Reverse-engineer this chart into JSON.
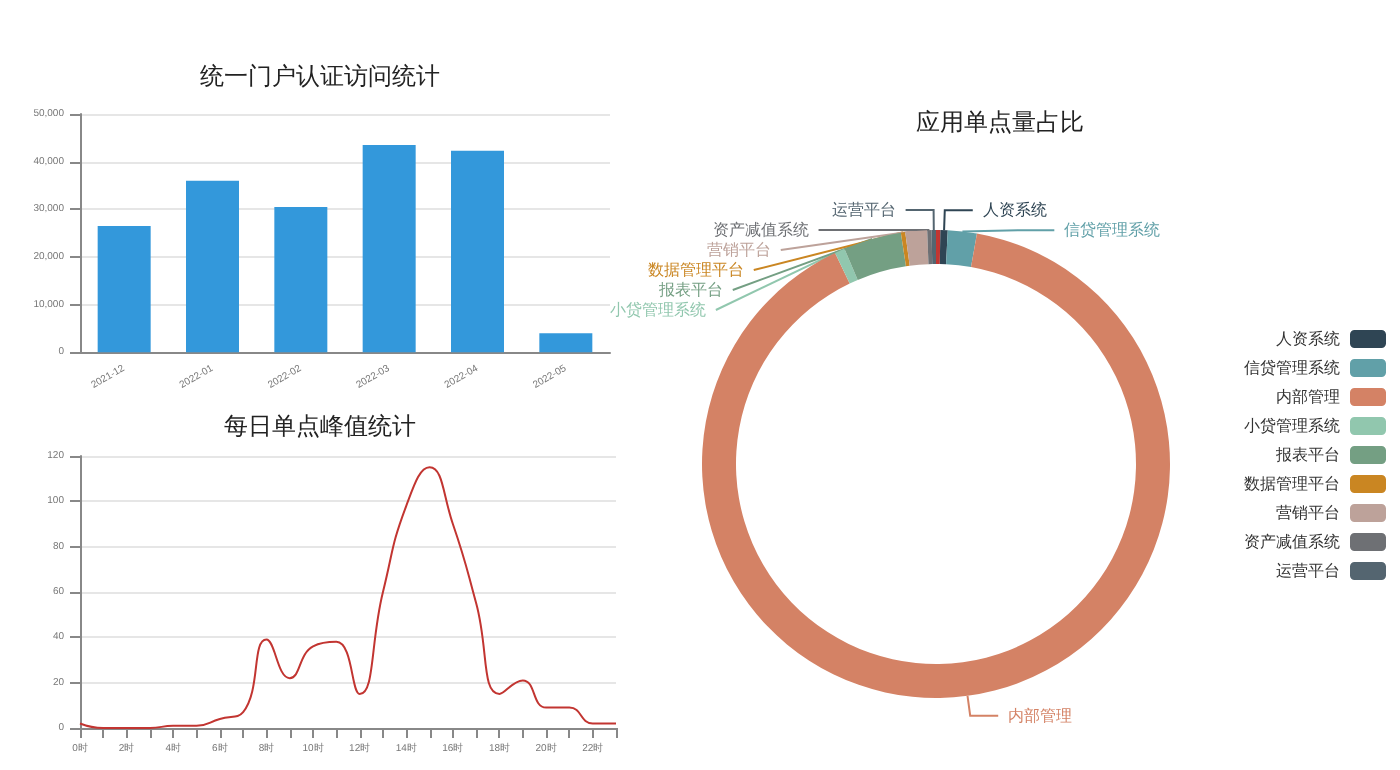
{
  "chart_data": [
    {
      "type": "bar",
      "title": "统一门户认证访问统计",
      "categories": [
        "2021-12",
        "2022-01",
        "2022-02",
        "2022-03",
        "2022-04",
        "2022-05"
      ],
      "values": [
        26500,
        36000,
        30500,
        43500,
        42300,
        4000
      ],
      "color": "#3398db",
      "ylim": [
        0,
        50000
      ],
      "yticks": [
        0,
        {
          "value": 10000,
          "label": "10,000"
        },
        {
          "value": 20000,
          "label": "20,000"
        },
        {
          "value": 30000,
          "label": "30,000"
        },
        {
          "value": 40000,
          "label": "40,000"
        },
        {
          "value": 50000,
          "label": "50,000"
        }
      ],
      "grid": "y"
    },
    {
      "type": "line",
      "title": "每日单点峰值统计",
      "categories": [
        "0时",
        null,
        "2时",
        null,
        "4时",
        null,
        "6时",
        null,
        "8时",
        null,
        "10时",
        null,
        "12时",
        null,
        "14时",
        null,
        "16时",
        null,
        "18时",
        null,
        "20时",
        null,
        "22时",
        null
      ],
      "values": [
        2,
        0,
        0,
        0,
        1,
        1,
        4,
        7,
        39,
        22,
        36,
        38,
        15,
        60,
        98,
        115,
        90,
        55,
        15,
        21,
        9,
        9,
        2,
        2
      ],
      "color": "#c23531",
      "ylim": [
        0,
        120
      ],
      "yticks": [
        0,
        20,
        40,
        60,
        80,
        100,
        120
      ],
      "grid": "y",
      "marker": "none"
    },
    {
      "type": "donut",
      "title": "应用单点量占比",
      "categories": [
        null,
        "人资系统",
        "信贷管理系统",
        "内部管理",
        "小贷管理系统",
        "报表平台",
        "数据管理平台",
        "营销平台",
        "资产减值系统",
        "运营平台"
      ],
      "values": [
        0.3,
        0.5,
        2,
        90.1,
        0.7,
        4,
        0.3,
        1.5,
        0.3,
        0.3
      ],
      "colors": [
        "#c23531",
        "#2f4554",
        "#61a0a8",
        "#d48265",
        "#91c7ae",
        "#749f83",
        "#ca8622",
        "#bda29a",
        "#6e7074",
        "#546570"
      ],
      "legend": "right"
    }
  ]
}
